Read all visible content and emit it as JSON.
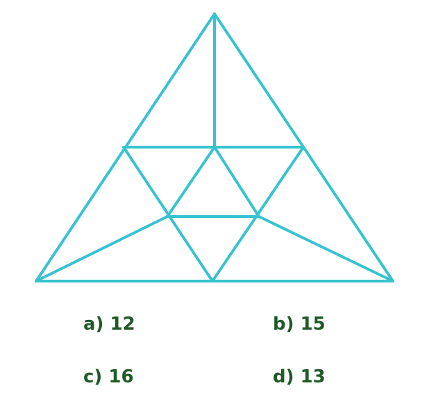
{
  "colors": {
    "line": "#36c3d0",
    "option_text": "#1f5a27",
    "background": "#ffffff"
  },
  "options": [
    {
      "letter": "a)",
      "value": "12"
    },
    {
      "letter": "b)",
      "value": "15"
    },
    {
      "letter": "c)",
      "value": "16"
    },
    {
      "letter": "d)",
      "value": "13"
    }
  ]
}
